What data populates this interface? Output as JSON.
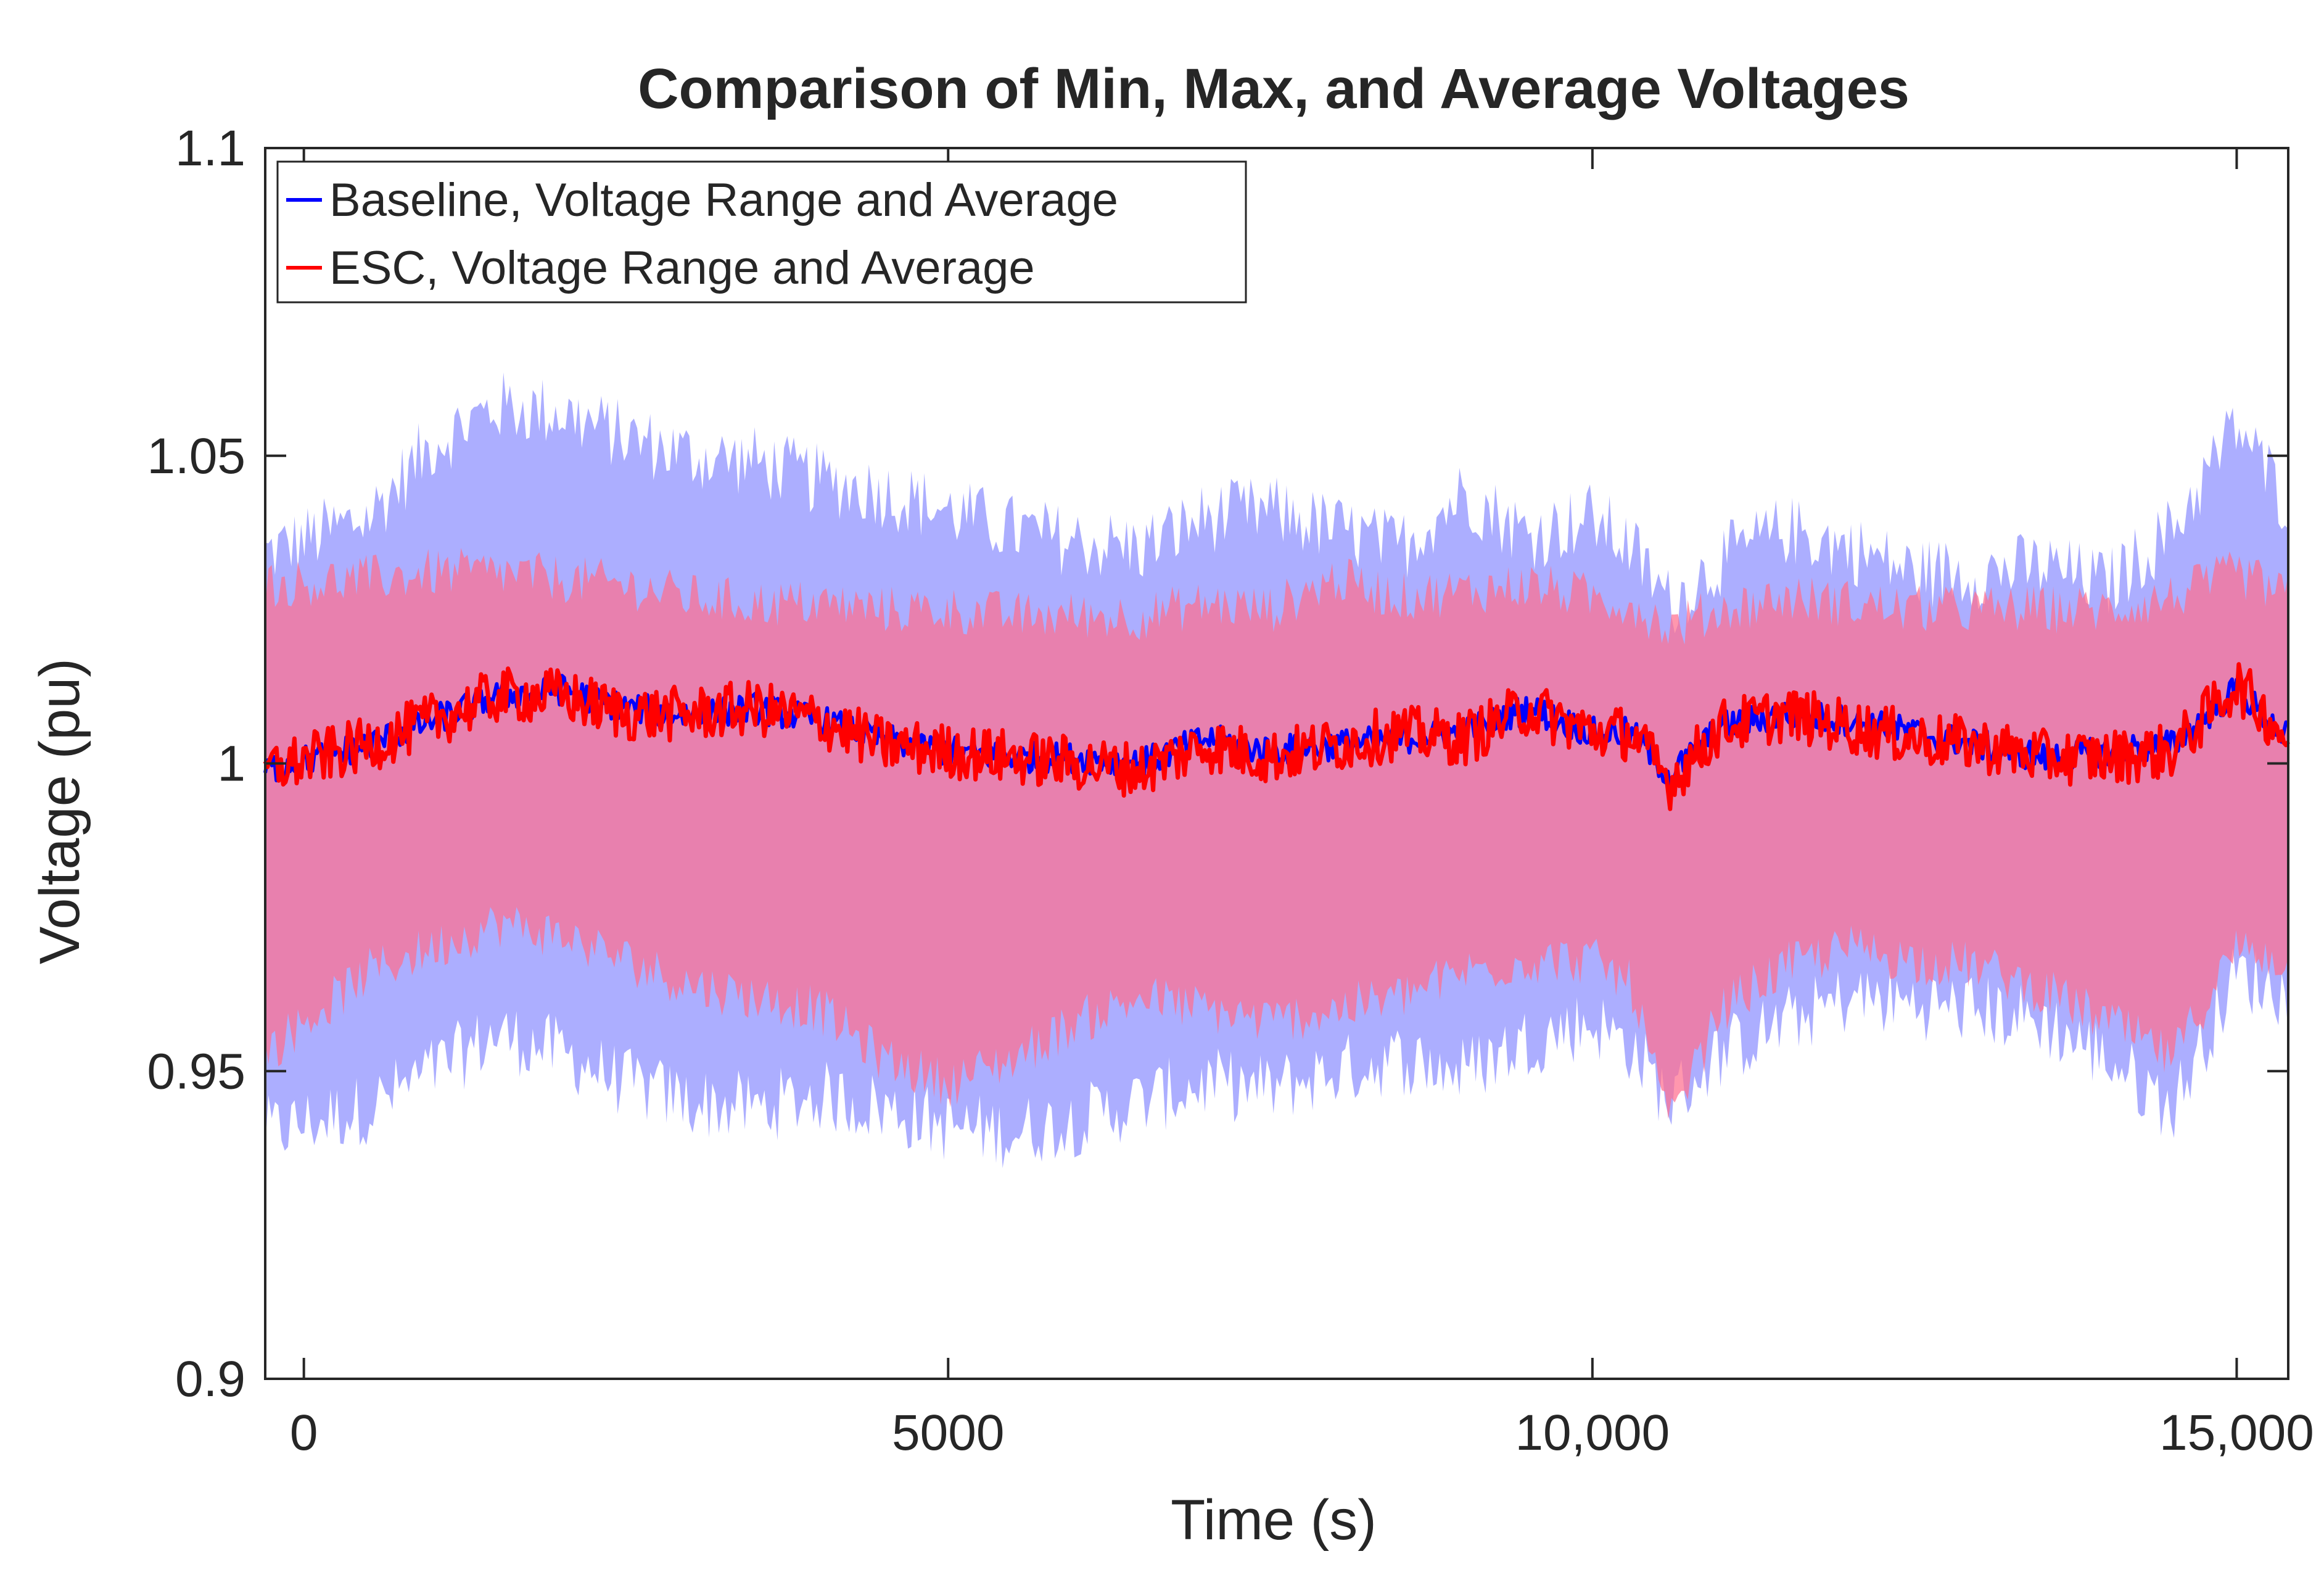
{
  "chart_data": {
    "type": "area",
    "title": "Comparison of Min, Max, and Average Voltages",
    "xlabel": "Time (s)",
    "ylabel": "Voltage (pu)",
    "xlim": [
      -300,
      15400
    ],
    "ylim": [
      0.9,
      1.1
    ],
    "x_ticks": [
      0,
      5000,
      10000,
      15000
    ],
    "x_tick_labels": [
      "0",
      "5000",
      "10,000",
      "15,000"
    ],
    "y_ticks": [
      0.9,
      0.95,
      1.0,
      1.05,
      1.1
    ],
    "y_tick_labels": [
      "0.9",
      "0.95",
      "1",
      "1.05",
      "1.1"
    ],
    "legend_position": "top-left",
    "series": [
      {
        "name": "Baseline, Voltage Range and Average",
        "color": "#0000ff",
        "band_color": "#a8aaff",
        "x": [
          -300,
          500,
          1000,
          1500,
          2000,
          2500,
          3000,
          3500,
          4000,
          4500,
          5000,
          5500,
          6000,
          6500,
          7000,
          7500,
          8000,
          8500,
          9000,
          9500,
          10000,
          10300,
          10600,
          11000,
          11500,
          12000,
          12500,
          13000,
          13500,
          14000,
          14500,
          15000,
          15400
        ],
        "max": [
          1.034,
          1.04,
          1.052,
          1.058,
          1.057,
          1.053,
          1.05,
          1.049,
          1.046,
          1.044,
          1.041,
          1.038,
          1.036,
          1.035,
          1.04,
          1.041,
          1.038,
          1.035,
          1.044,
          1.037,
          1.04,
          1.035,
          1.026,
          1.033,
          1.038,
          1.035,
          1.031,
          1.031,
          1.032,
          1.029,
          1.038,
          1.055,
          1.042
        ],
        "min": [
          0.94,
          0.944,
          0.95,
          0.956,
          0.953,
          0.948,
          0.945,
          0.944,
          0.946,
          0.944,
          0.941,
          0.94,
          0.942,
          0.945,
          0.948,
          0.947,
          0.95,
          0.952,
          0.95,
          0.955,
          0.958,
          0.954,
          0.945,
          0.953,
          0.958,
          0.962,
          0.961,
          0.96,
          0.958,
          0.952,
          0.944,
          0.966,
          0.962
        ],
        "avg": [
          0.999,
          1.003,
          1.007,
          1.011,
          1.012,
          1.009,
          1.008,
          1.009,
          1.007,
          1.004,
          1.002,
          1.001,
          1.001,
          1.0,
          1.004,
          1.002,
          1.003,
          1.004,
          1.005,
          1.009,
          1.005,
          1.005,
          0.998,
          1.006,
          1.008,
          1.007,
          1.005,
          1.003,
          1.001,
          1.002,
          1.003,
          1.012,
          1.004
        ]
      },
      {
        "name": "ESC, Voltage Range and Average",
        "color": "#ff0000",
        "band_color": "#ff6f8f",
        "x": [
          -300,
          500,
          1000,
          1500,
          2000,
          2500,
          3000,
          3500,
          4000,
          4500,
          5000,
          5500,
          6000,
          6500,
          7000,
          7500,
          8000,
          8500,
          9000,
          9500,
          10000,
          10300,
          10600,
          11000,
          11500,
          12000,
          12500,
          13000,
          13500,
          14000,
          14500,
          15000,
          15400
        ],
        "max": [
          1.029,
          1.03,
          1.031,
          1.031,
          1.03,
          1.029,
          1.027,
          1.026,
          1.026,
          1.025,
          1.025,
          1.024,
          1.024,
          1.024,
          1.026,
          1.025,
          1.03,
          1.027,
          1.028,
          1.029,
          1.027,
          1.026,
          1.022,
          1.025,
          1.027,
          1.026,
          1.025,
          1.025,
          1.025,
          1.025,
          1.027,
          1.031,
          1.027
        ],
        "min": [
          0.953,
          0.966,
          0.97,
          0.974,
          0.972,
          0.968,
          0.964,
          0.962,
          0.96,
          0.952,
          0.948,
          0.952,
          0.958,
          0.962,
          0.96,
          0.958,
          0.96,
          0.962,
          0.966,
          0.968,
          0.968,
          0.964,
          0.941,
          0.96,
          0.967,
          0.97,
          0.968,
          0.967,
          0.963,
          0.958,
          0.952,
          0.97,
          0.968
        ],
        "avg": [
          0.999,
          1.003,
          1.007,
          1.011,
          1.011,
          1.008,
          1.008,
          1.009,
          1.007,
          1.003,
          1.002,
          1.001,
          1.0,
          0.999,
          1.003,
          1.001,
          1.003,
          1.005,
          1.004,
          1.009,
          1.005,
          1.005,
          0.997,
          1.006,
          1.008,
          1.006,
          1.004,
          1.003,
          1.001,
          1.001,
          1.002,
          1.013,
          1.004
        ]
      }
    ]
  }
}
